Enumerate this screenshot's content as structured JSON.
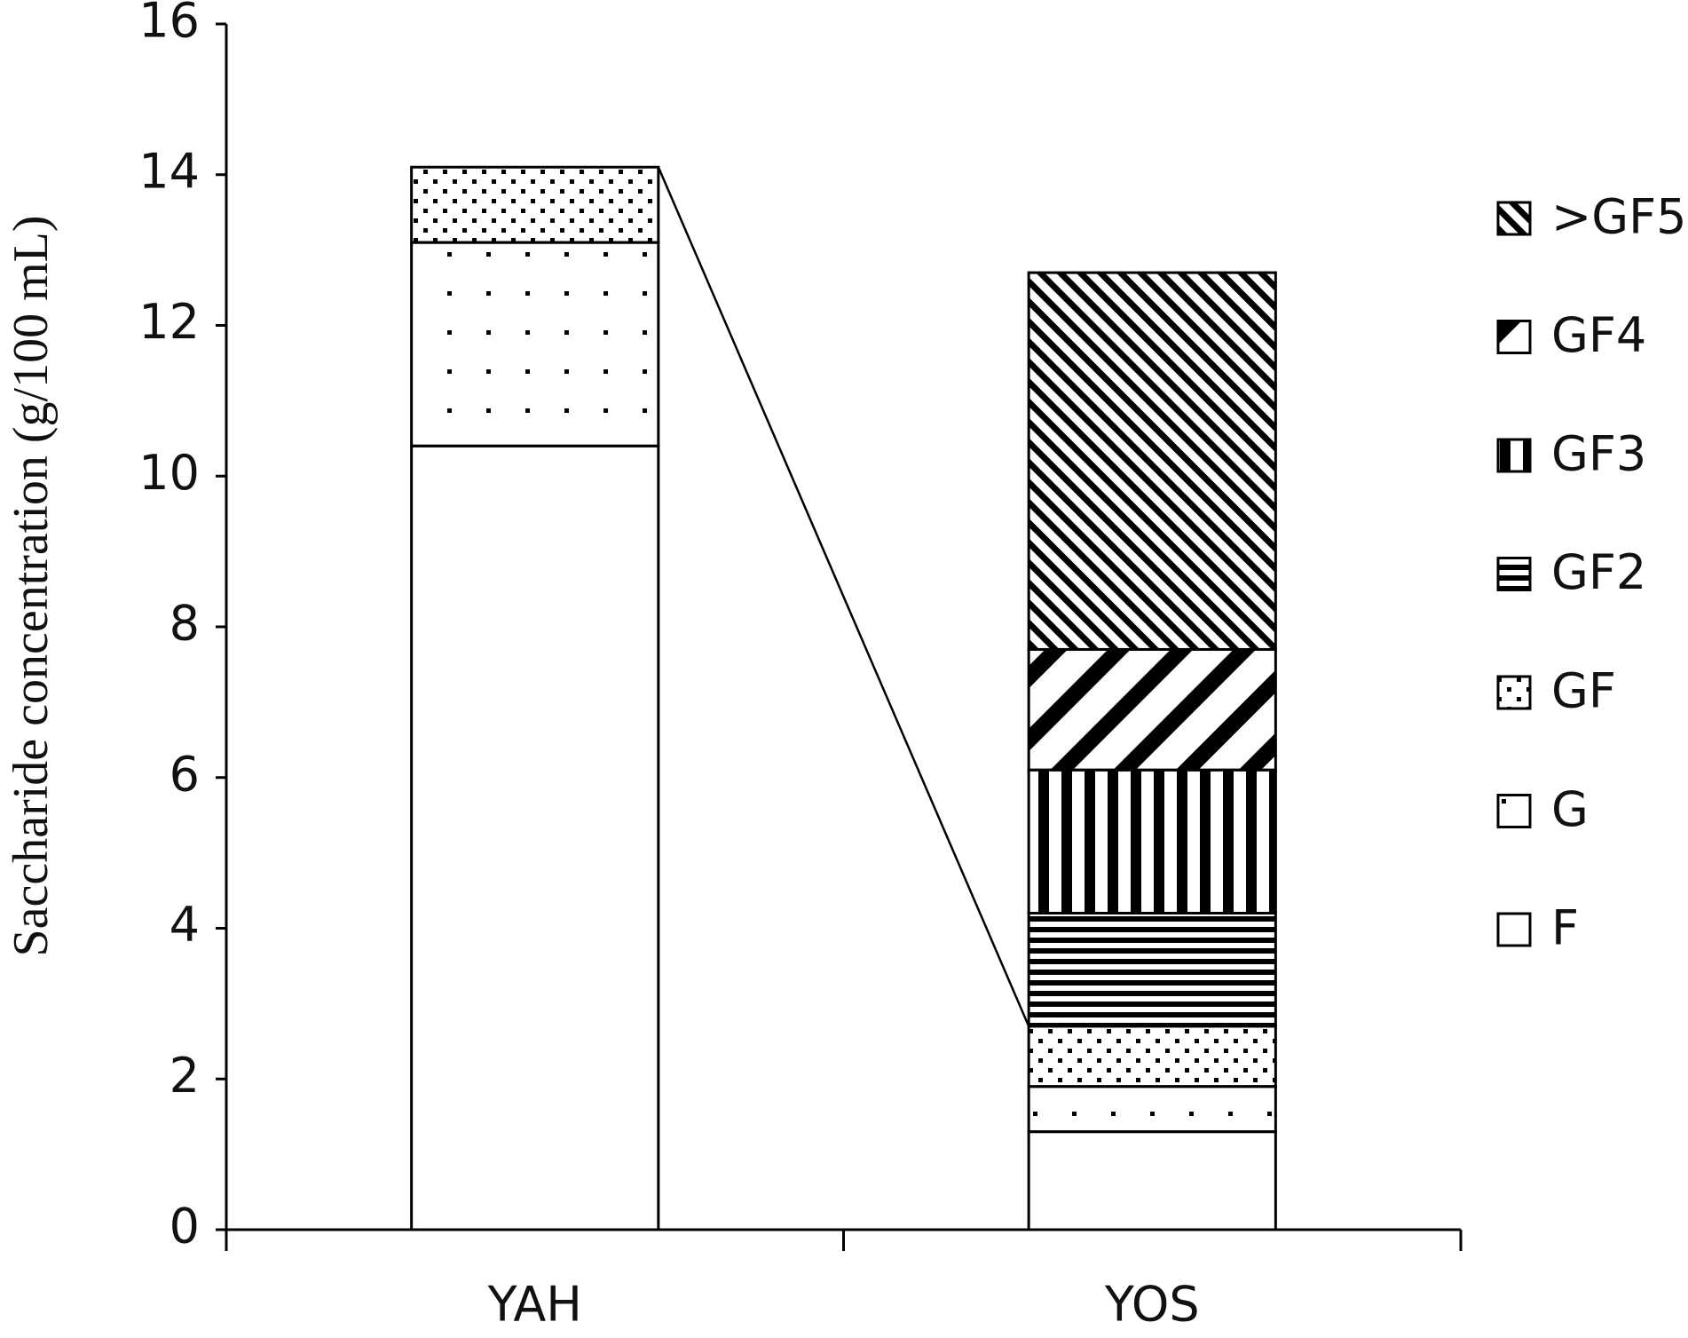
{
  "chart_data": {
    "type": "stacked-bar",
    "y_label": "Saccharide concentration  (g/100 mL)",
    "categories": [
      "YAH",
      "YOS"
    ],
    "series": [
      {
        "name": "F",
        "color": "#000000",
        "pattern": "none",
        "values": [
          10.4,
          1.3
        ]
      },
      {
        "name": "G",
        "color": "#000000",
        "pattern": "sparse-dots",
        "values": [
          2.7,
          0.6
        ]
      },
      {
        "name": "GF",
        "color": "#000000",
        "pattern": "dense-dots",
        "values": [
          1.0,
          0.8
        ]
      },
      {
        "name": "GF2",
        "color": "#000000",
        "pattern": "horizontal",
        "values": [
          0,
          1.5
        ]
      },
      {
        "name": "GF3",
        "color": "#000000",
        "pattern": "vertical",
        "values": [
          0,
          1.9
        ]
      },
      {
        "name": "GF4",
        "color": "#000000",
        "pattern": "wide-diagonal",
        "values": [
          0,
          1.6
        ]
      },
      {
        "name": ">GF5",
        "color": "#000000",
        "pattern": "fine-diagonal",
        "values": [
          0,
          5.0
        ]
      }
    ],
    "ylim": [
      0,
      16
    ],
    "yticks": [
      0,
      2,
      4,
      6,
      8,
      10,
      12,
      14,
      16
    ],
    "grid": false,
    "legend": "right"
  }
}
